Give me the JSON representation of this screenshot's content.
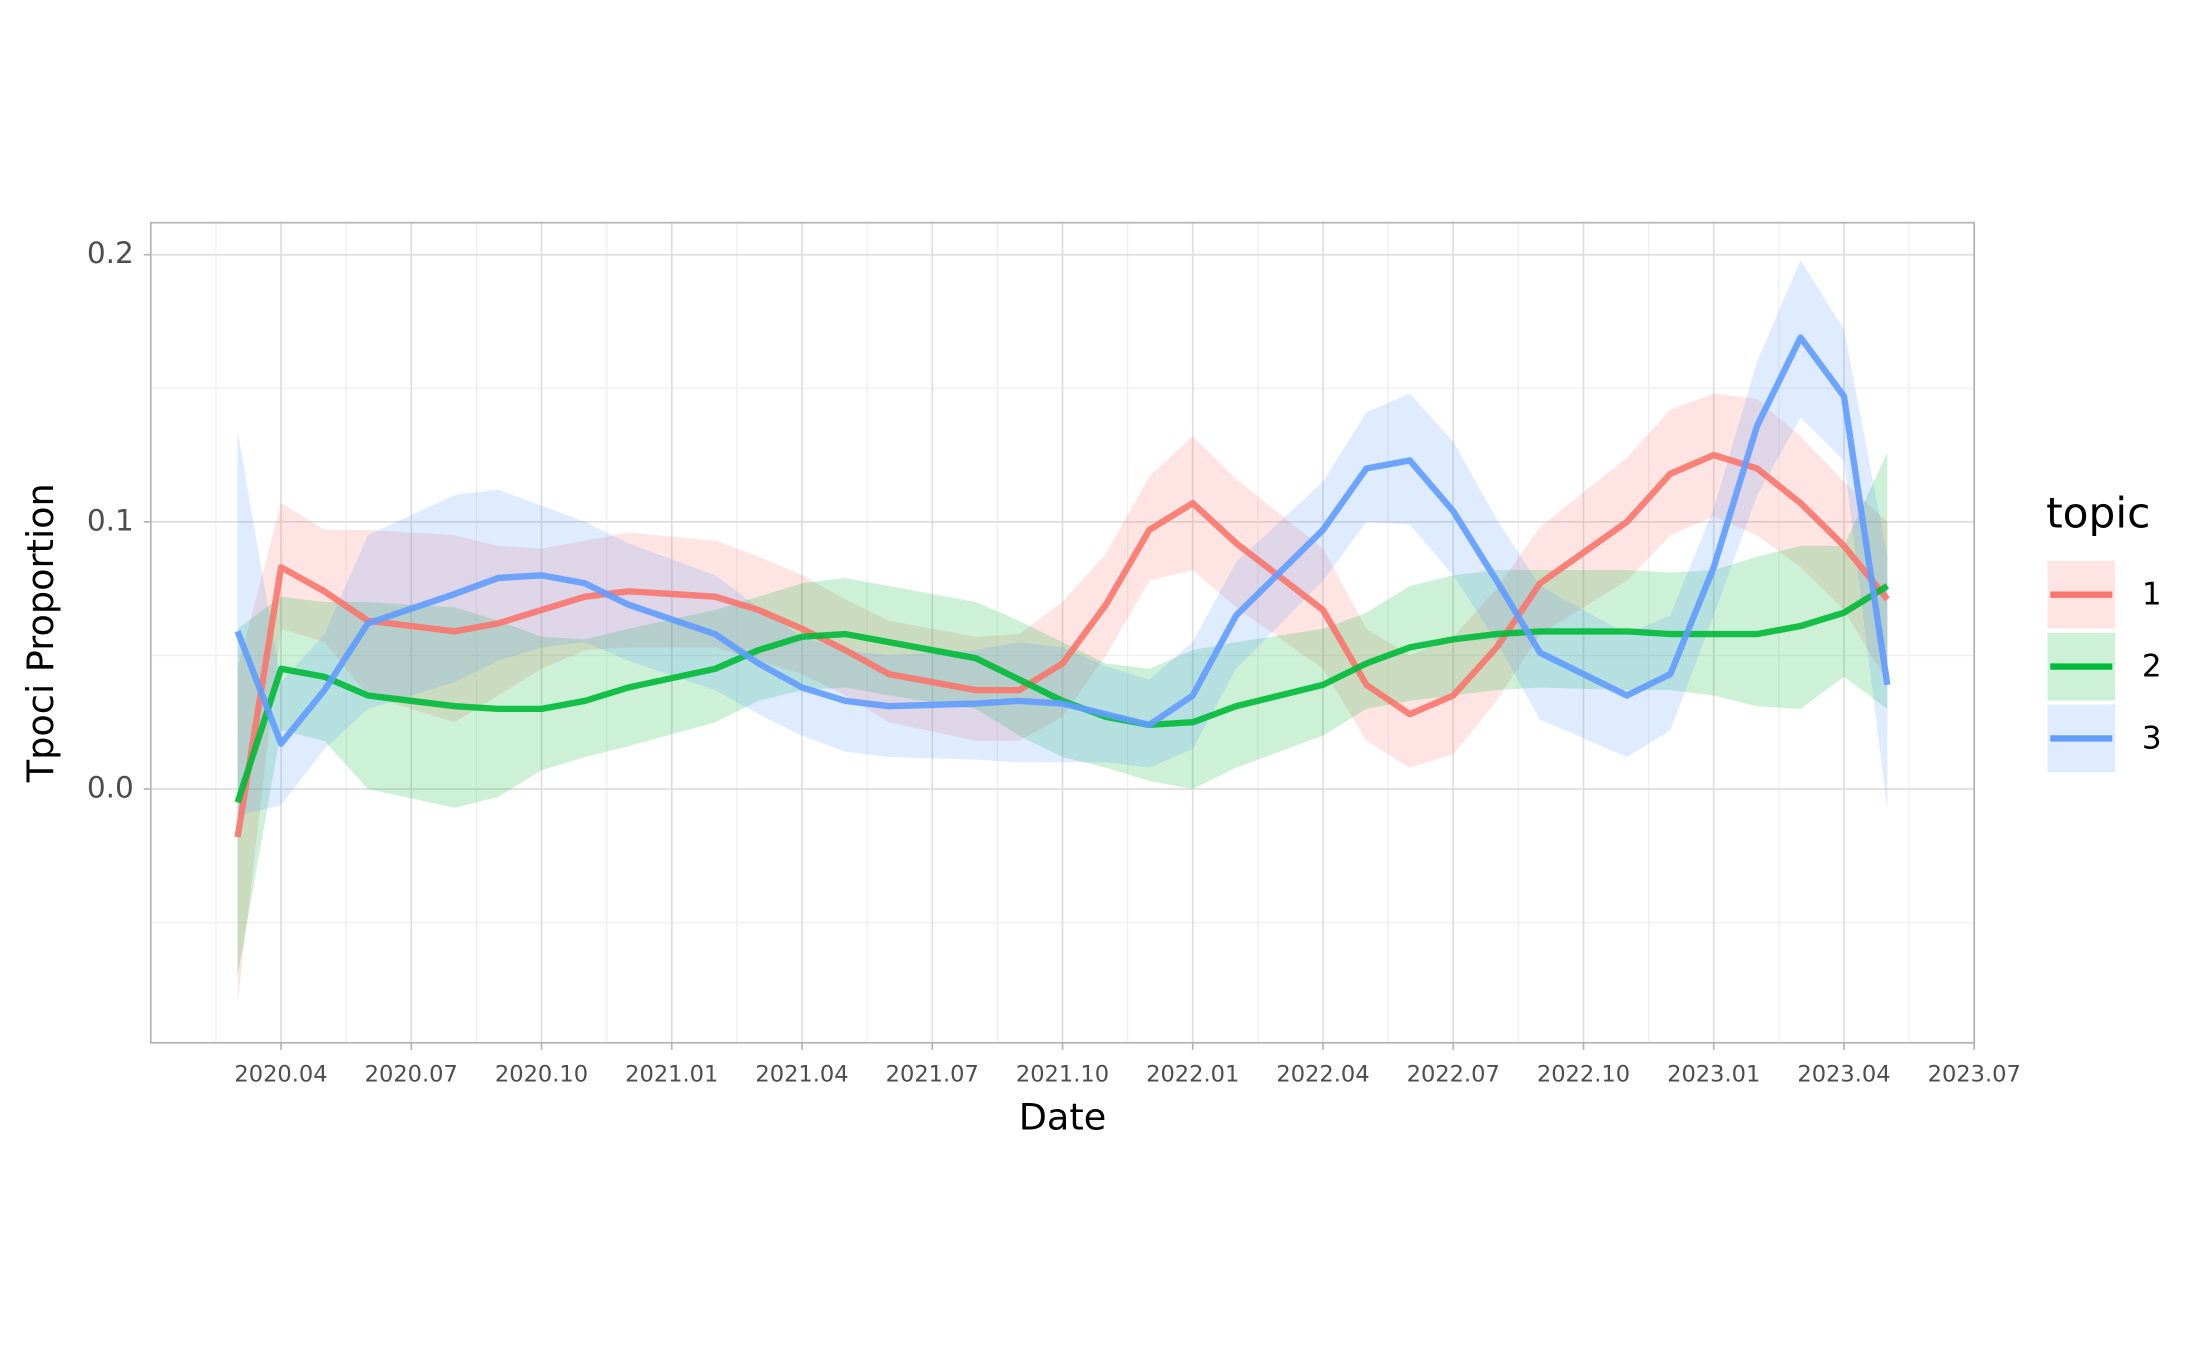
{
  "chart_data": {
    "type": "line",
    "x_label": "Date",
    "y_label": "Tpoci Proportion",
    "legend_title": "topic",
    "legend": "right",
    "grid": true,
    "x": [
      "2020.03",
      "2020.04",
      "2020.05",
      "2020.06",
      "2020.08",
      "2020.09",
      "2020.10",
      "2020.11",
      "2020.12",
      "2021.02",
      "2021.03",
      "2021.04",
      "2021.05",
      "2021.06",
      "2021.08",
      "2021.09",
      "2021.10",
      "2021.11",
      "2021.12",
      "2022.01",
      "2022.02",
      "2022.04",
      "2022.05",
      "2022.06",
      "2022.07",
      "2022.08",
      "2022.09",
      "2022.11",
      "2022.12",
      "2023.01",
      "2023.02",
      "2023.03",
      "2023.04",
      "2023.05"
    ],
    "xlim": [
      "2020.01",
      "2023.07"
    ],
    "xticks": [
      "2020.04",
      "2020.07",
      "2020.10",
      "2021.01",
      "2021.04",
      "2021.07",
      "2021.10",
      "2022.01",
      "2022.04",
      "2022.07",
      "2022.10",
      "2023.01",
      "2023.04",
      "2023.07"
    ],
    "ylim": [
      -0.095,
      0.212
    ],
    "yticks": [
      {
        "value": 0,
        "label": "0.0"
      },
      {
        "value": 0.1,
        "label": "0.1"
      },
      {
        "value": 0.2,
        "label": "0.2"
      }
    ],
    "series": [
      {
        "name": "1",
        "color": "#F8766D",
        "values": [
          -0.018,
          0.083,
          0.074,
          0.063,
          0.059,
          0.062,
          0.067,
          0.072,
          0.074,
          0.072,
          0.067,
          0.06,
          0.052,
          0.043,
          0.037,
          0.037,
          0.047,
          0.069,
          0.097,
          0.107,
          0.092,
          0.067,
          0.039,
          0.028,
          0.035,
          0.053,
          0.077,
          0.1,
          0.118,
          0.125,
          0.12,
          0.107,
          0.091,
          0.071
        ],
        "lower": [
          -0.08,
          0.06,
          0.055,
          0.035,
          0.025,
          0.035,
          0.045,
          0.052,
          0.053,
          0.053,
          0.048,
          0.043,
          0.035,
          0.025,
          0.018,
          0.018,
          0.027,
          0.05,
          0.078,
          0.082,
          0.068,
          0.045,
          0.018,
          0.008,
          0.013,
          0.033,
          0.058,
          0.078,
          0.095,
          0.102,
          0.095,
          0.083,
          0.067,
          0.04
        ],
        "upper": [
          0.045,
          0.107,
          0.097,
          0.097,
          0.095,
          0.091,
          0.09,
          0.093,
          0.096,
          0.093,
          0.087,
          0.08,
          0.071,
          0.063,
          0.057,
          0.058,
          0.07,
          0.088,
          0.117,
          0.132,
          0.116,
          0.09,
          0.06,
          0.05,
          0.057,
          0.075,
          0.098,
          0.124,
          0.142,
          0.148,
          0.146,
          0.132,
          0.115,
          0.1
        ]
      },
      {
        "name": "2",
        "color": "#00BA38",
        "values": [
          -0.005,
          0.045,
          0.042,
          0.035,
          0.031,
          0.03,
          0.03,
          0.033,
          0.038,
          0.045,
          0.052,
          0.057,
          0.058,
          0.055,
          0.049,
          0.041,
          0.033,
          0.027,
          0.024,
          0.025,
          0.031,
          0.039,
          0.047,
          0.053,
          0.056,
          0.058,
          0.059,
          0.059,
          0.058,
          0.058,
          0.058,
          0.061,
          0.066,
          0.076
        ],
        "lower": [
          -0.07,
          0.022,
          0.018,
          0.0,
          -0.007,
          -0.003,
          0.007,
          0.012,
          0.016,
          0.025,
          0.033,
          0.037,
          0.038,
          0.035,
          0.03,
          0.02,
          0.012,
          0.008,
          0.003,
          0.0,
          0.008,
          0.02,
          0.03,
          0.033,
          0.035,
          0.037,
          0.038,
          0.037,
          0.037,
          0.035,
          0.031,
          0.03,
          0.042,
          0.03
        ],
        "upper": [
          0.06,
          0.072,
          0.07,
          0.07,
          0.068,
          0.063,
          0.057,
          0.056,
          0.06,
          0.067,
          0.072,
          0.077,
          0.079,
          0.076,
          0.07,
          0.063,
          0.055,
          0.047,
          0.045,
          0.052,
          0.055,
          0.06,
          0.066,
          0.076,
          0.08,
          0.082,
          0.082,
          0.082,
          0.081,
          0.082,
          0.087,
          0.091,
          0.091,
          0.126
        ]
      },
      {
        "name": "3",
        "color": "#619CFF",
        "values": [
          0.059,
          0.017,
          0.037,
          0.062,
          0.073,
          0.079,
          0.08,
          0.077,
          0.069,
          0.058,
          0.047,
          0.038,
          0.033,
          0.031,
          0.032,
          0.033,
          0.032,
          0.028,
          0.024,
          0.035,
          0.065,
          0.097,
          0.12,
          0.123,
          0.104,
          0.078,
          0.051,
          0.035,
          0.043,
          0.083,
          0.136,
          0.169,
          0.147,
          0.039
        ],
        "lower": [
          -0.01,
          -0.006,
          0.015,
          0.03,
          0.04,
          0.048,
          0.053,
          0.055,
          0.048,
          0.037,
          0.028,
          0.02,
          0.014,
          0.012,
          0.011,
          0.01,
          0.01,
          0.01,
          0.008,
          0.015,
          0.045,
          0.078,
          0.1,
          0.099,
          0.08,
          0.055,
          0.026,
          0.012,
          0.022,
          0.065,
          0.11,
          0.139,
          0.123,
          -0.008
        ],
        "upper": [
          0.134,
          0.04,
          0.058,
          0.095,
          0.11,
          0.112,
          0.106,
          0.1,
          0.092,
          0.08,
          0.068,
          0.057,
          0.052,
          0.05,
          0.052,
          0.055,
          0.053,
          0.046,
          0.041,
          0.055,
          0.085,
          0.115,
          0.141,
          0.148,
          0.13,
          0.101,
          0.076,
          0.058,
          0.065,
          0.105,
          0.16,
          0.198,
          0.172,
          0.087
        ]
      }
    ]
  }
}
